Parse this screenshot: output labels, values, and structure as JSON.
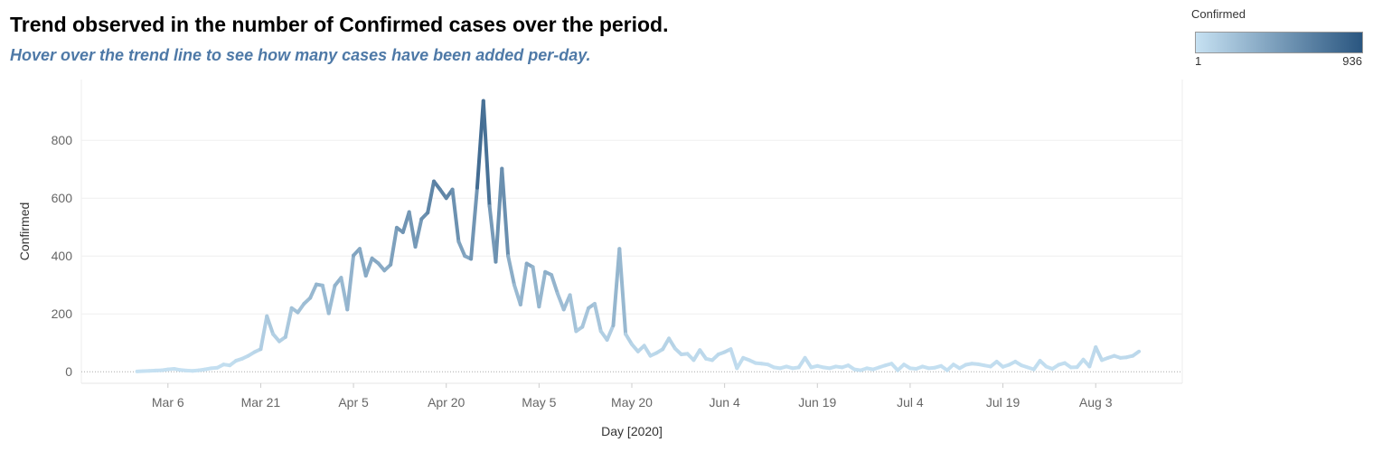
{
  "header": {
    "title": "Trend observed in the number of Confirmed cases over the period.",
    "subtitle": "Hover over the trend line to see how many cases have been added per-day."
  },
  "legend": {
    "title": "Confirmed",
    "min_label": "1",
    "max_label": "936",
    "color_low": "#c6e1f2",
    "color_high": "#2a5680"
  },
  "chart_data": {
    "type": "line",
    "xlabel": "Day [2020]",
    "ylabel": "Confirmed",
    "x_start": "2020-03-01",
    "x_end": "2020-08-05",
    "x_domain": [
      "2020-02-21",
      "2020-08-17"
    ],
    "ylim": [
      -40,
      1010
    ],
    "y_ticks": [
      0,
      200,
      400,
      600,
      800
    ],
    "x_ticks": [
      {
        "date": "2020-03-06",
        "label": "Mar 6"
      },
      {
        "date": "2020-03-21",
        "label": "Mar 21"
      },
      {
        "date": "2020-04-05",
        "label": "Apr 5"
      },
      {
        "date": "2020-04-20",
        "label": "Apr 20"
      },
      {
        "date": "2020-05-05",
        "label": "May 5"
      },
      {
        "date": "2020-05-20",
        "label": "May 20"
      },
      {
        "date": "2020-06-04",
        "label": "Jun 4"
      },
      {
        "date": "2020-06-19",
        "label": "Jun 19"
      },
      {
        "date": "2020-07-04",
        "label": "Jul 4"
      },
      {
        "date": "2020-07-19",
        "label": "Jul 19"
      },
      {
        "date": "2020-08-03",
        "label": "Aug 3"
      }
    ],
    "grid": true,
    "color_scale": {
      "min": 1,
      "max": 936,
      "low": "#c6e1f2",
      "high": "#2a5680"
    },
    "series": [
      {
        "values": [
          1,
          2,
          3,
          4,
          5,
          8,
          10,
          6,
          4,
          3,
          5,
          8,
          12,
          14,
          25,
          22,
          38,
          45,
          55,
          68,
          78,
          192,
          130,
          105,
          120,
          220,
          205,
          235,
          255,
          302,
          298,
          202,
          298,
          325,
          215,
          402,
          425,
          332,
          392,
          375,
          350,
          370,
          498,
          482,
          552,
          432,
          528,
          550,
          658,
          630,
          600,
          630,
          450,
          400,
          390,
          636,
          936,
          572,
          380,
          702,
          400,
          300,
          232,
          374,
          362,
          225,
          345,
          335,
          270,
          215,
          265,
          140,
          155,
          220,
          235,
          140,
          110,
          160,
          425,
          130,
          95,
          70,
          90,
          55,
          65,
          78,
          115,
          80,
          60,
          62,
          40,
          75,
          45,
          40,
          60,
          68,
          78,
          12,
          48,
          40,
          30,
          28,
          25,
          15,
          12,
          18,
          12,
          15,
          48,
          15,
          20,
          15,
          12,
          18,
          15,
          22,
          8,
          5,
          12,
          8,
          15,
          22,
          28,
          5,
          25,
          12,
          10,
          18,
          12,
          14,
          20,
          5,
          25,
          12,
          24,
          28,
          26,
          22,
          18,
          35,
          17,
          24,
          35,
          22,
          15,
          8,
          38,
          18,
          10,
          24,
          30,
          15,
          16,
          42,
          18,
          85,
          40,
          48,
          55,
          48,
          50,
          55,
          70
        ]
      }
    ]
  }
}
